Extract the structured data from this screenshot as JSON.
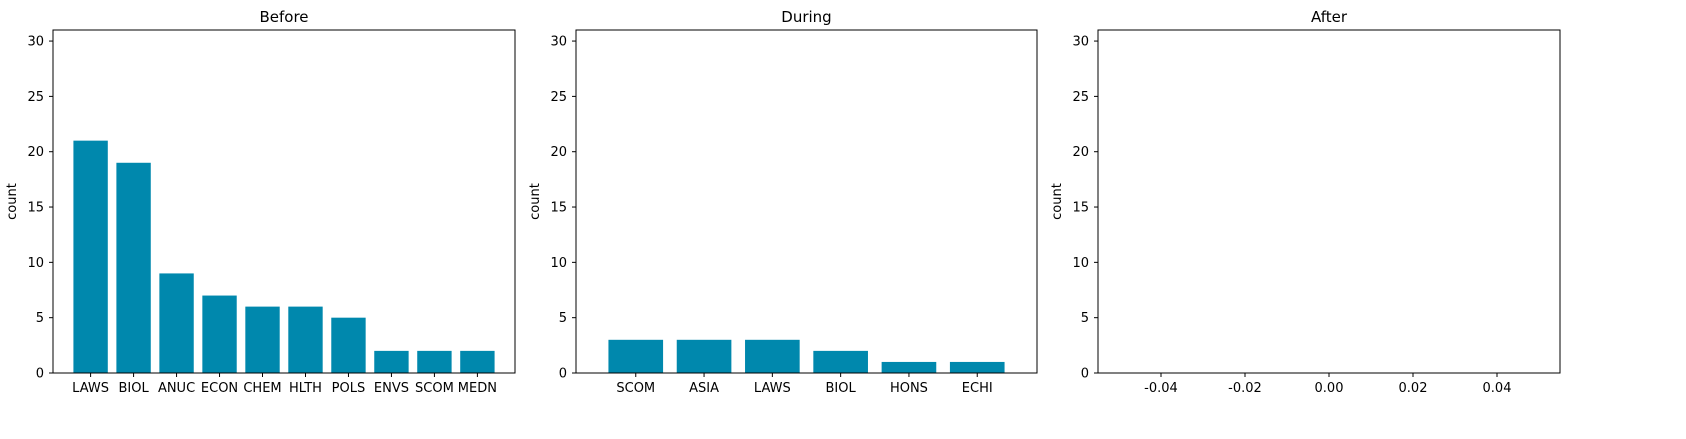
{
  "chart_data": [
    {
      "type": "bar",
      "title": "Before",
      "xlabel": "",
      "ylabel": "count",
      "ylim": [
        0,
        31
      ],
      "yticks": [
        0,
        5,
        10,
        15,
        20,
        25,
        30
      ],
      "categories": [
        "LAWS",
        "BIOL",
        "ANUC",
        "ECON",
        "CHEM",
        "HLTH",
        "POLS",
        "ENVS",
        "SCOM",
        "MEDN"
      ],
      "values": [
        21,
        19,
        9,
        7,
        6,
        6,
        5,
        2,
        2,
        2
      ],
      "color": "#0088ad",
      "grid": false
    },
    {
      "type": "bar",
      "title": "During",
      "xlabel": "",
      "ylabel": "count",
      "ylim": [
        0,
        31
      ],
      "yticks": [
        0,
        5,
        10,
        15,
        20,
        25,
        30
      ],
      "categories": [
        "SCOM",
        "ASIA",
        "LAWS",
        "BIOL",
        "HONS",
        "ECHI"
      ],
      "values": [
        3,
        3,
        3,
        2,
        1,
        1
      ],
      "color": "#0088ad",
      "grid": false
    },
    {
      "type": "bar",
      "title": "After",
      "xlabel": "",
      "ylabel": "count",
      "ylim": [
        0,
        31
      ],
      "yticks": [
        0,
        5,
        10,
        15,
        20,
        25,
        30
      ],
      "categories": [],
      "values": [],
      "xlim": [
        -0.055,
        0.055
      ],
      "xticks": [
        "-0.04",
        "-0.02",
        "0.00",
        "0.02",
        "0.04"
      ],
      "xtick_values": [
        -0.04,
        -0.02,
        0.0,
        0.02,
        0.04
      ],
      "color": "#0088ad",
      "grid": false
    }
  ]
}
